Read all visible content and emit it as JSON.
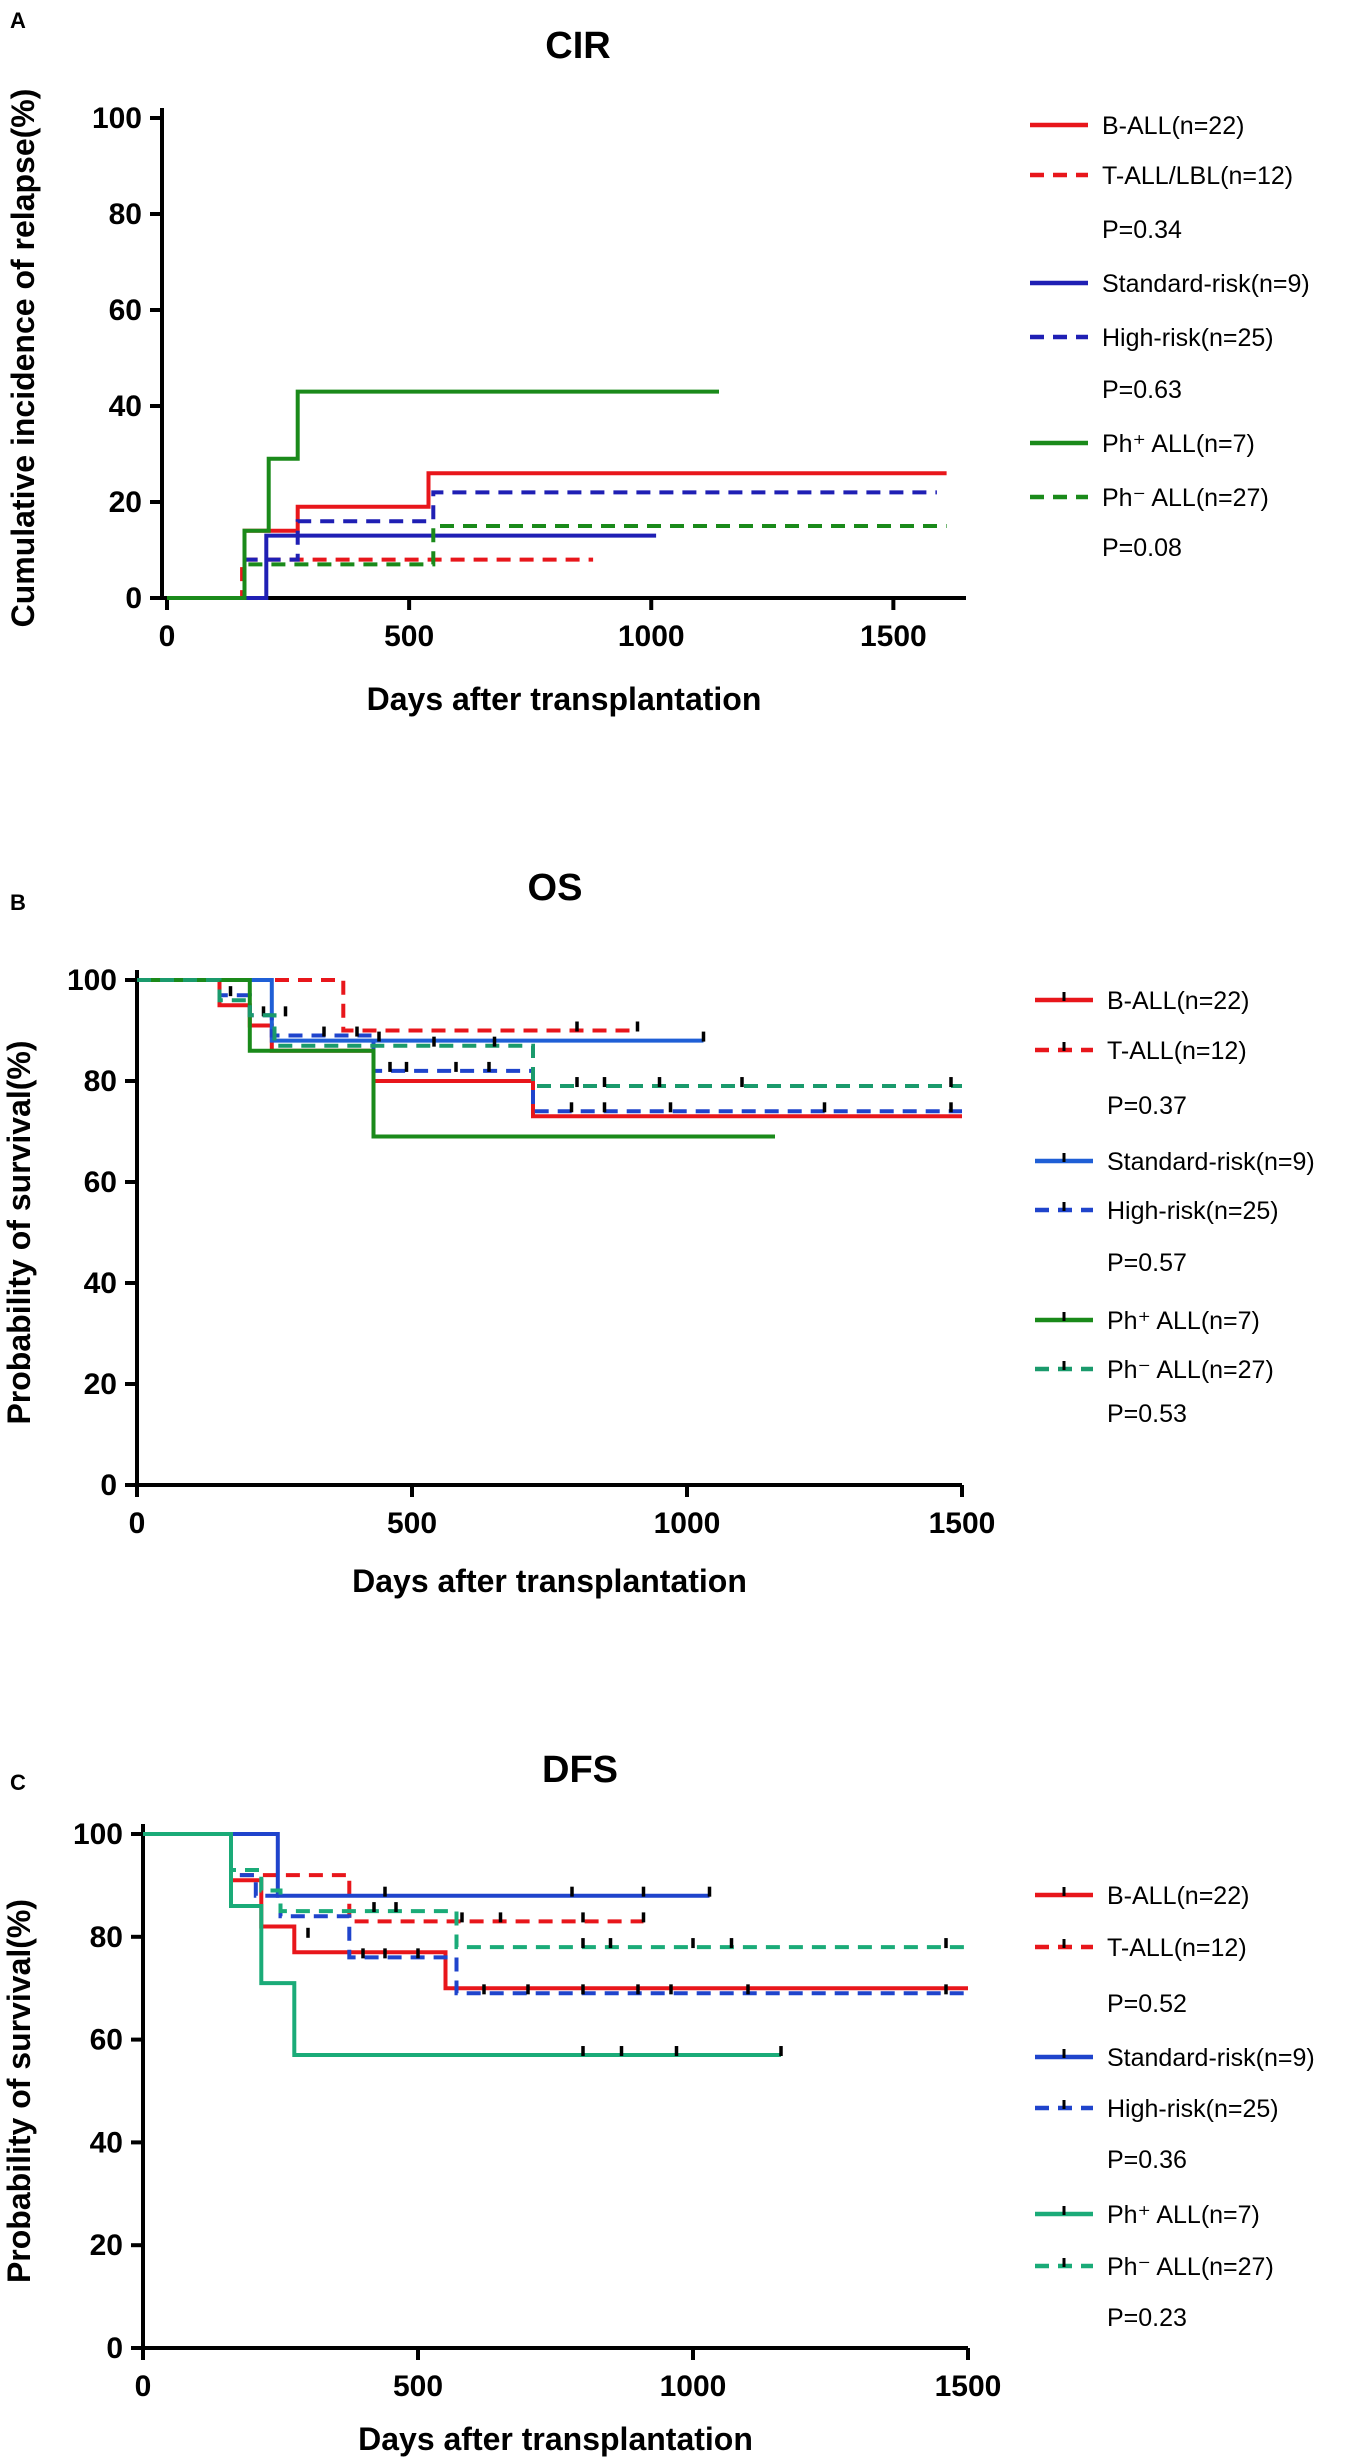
{
  "figure": {
    "panels": [
      "A",
      "B",
      "C"
    ]
  },
  "chart_data": [
    {
      "panel": "A",
      "type": "line",
      "title": "CIR",
      "xlabel": "Days after transplantation",
      "ylabel": "Cumulative incidence of relapse(%)",
      "xlim": [
        0,
        1650
      ],
      "ylim": [
        0,
        100
      ],
      "xticks": [
        0,
        500,
        1000,
        1500
      ],
      "yticks": [
        0,
        20,
        40,
        60,
        80,
        100
      ],
      "grid": false,
      "legend_position": "right",
      "series": [
        {
          "name": "B-ALL(n=22)",
          "color": "#e8161b",
          "style": "solid",
          "x": [
            0,
            160,
            160,
            270,
            270,
            540,
            540,
            1610
          ],
          "y": [
            0,
            0,
            14,
            14,
            19,
            19,
            26,
            26
          ],
          "censored": []
        },
        {
          "name": "T-ALL/LBL(n=12)",
          "color": "#e8161b",
          "style": "dashed",
          "x": [
            0,
            155,
            155,
            880
          ],
          "y": [
            0,
            0,
            8,
            8
          ],
          "censored": []
        },
        {
          "name": "Standard-risk(n=9)",
          "color": "#1f1fb4",
          "style": "solid",
          "x": [
            0,
            205,
            205,
            1010
          ],
          "y": [
            0,
            0,
            13,
            13
          ],
          "censored": []
        },
        {
          "name": "High-risk(n=25)",
          "color": "#1f1fb4",
          "style": "dashed",
          "x": [
            0,
            160,
            160,
            270,
            270,
            550,
            550,
            1590
          ],
          "y": [
            0,
            0,
            8,
            8,
            16,
            16,
            22,
            22
          ],
          "censored": []
        },
        {
          "name": "Ph⁺ ALL(n=7)",
          "color": "#1a8a1a",
          "style": "solid",
          "x": [
            0,
            160,
            160,
            210,
            210,
            270,
            270,
            1140
          ],
          "y": [
            0,
            0,
            14,
            14,
            29,
            29,
            43,
            43
          ],
          "censored": []
        },
        {
          "name": "Ph⁻ ALL(n=27)",
          "color": "#1a8a1a",
          "style": "dashed",
          "x": [
            0,
            160,
            160,
            550,
            550,
            1610
          ],
          "y": [
            0,
            0,
            7,
            7,
            15,
            15
          ],
          "censored": []
        }
      ],
      "pvalues": [
        "P=0.34",
        "P=0.63",
        "P=0.08"
      ]
    },
    {
      "panel": "B",
      "type": "line",
      "title": "OS",
      "xlabel": "Days after transplantation",
      "ylabel": "Probability of survival(%)",
      "xlim": [
        0,
        1500
      ],
      "ylim": [
        0,
        100
      ],
      "xticks": [
        0,
        500,
        1000,
        1500
      ],
      "yticks": [
        0,
        20,
        40,
        60,
        80,
        100
      ],
      "grid": false,
      "legend_position": "right",
      "series": [
        {
          "name": "B-ALL(n=22)",
          "color": "#e8161b",
          "style": "solid",
          "x": [
            0,
            150,
            150,
            205,
            205,
            245,
            245,
            430,
            430,
            720,
            720,
            1500
          ],
          "y": [
            100,
            100,
            95,
            95,
            91,
            91,
            86,
            86,
            80,
            80,
            73,
            73
          ],
          "censored": []
        },
        {
          "name": "T-ALL(n=12)",
          "color": "#e8161b",
          "style": "dashed",
          "x": [
            0,
            375,
            375,
            910
          ],
          "y": [
            100,
            100,
            90,
            90
          ],
          "censored": [
            [
              800,
              90
            ],
            [
              910,
              90
            ]
          ]
        },
        {
          "name": "Standard-risk(n=9)",
          "color": "#1f5fd6",
          "style": "solid",
          "x": [
            0,
            245,
            245,
            1030
          ],
          "y": [
            100,
            100,
            88,
            88
          ],
          "censored": [
            [
              440,
              88
            ],
            [
              1030,
              88
            ]
          ]
        },
        {
          "name": "High-risk(n=25)",
          "color": "#1f44cc",
          "style": "dashed",
          "x": [
            0,
            150,
            150,
            205,
            205,
            245,
            245,
            430,
            430,
            720,
            720,
            1500
          ],
          "y": [
            100,
            100,
            97,
            97,
            93,
            93,
            89,
            89,
            82,
            82,
            74,
            74
          ],
          "censored": [
            [
              170,
              97
            ],
            [
              230,
              93
            ],
            [
              270,
              93
            ],
            [
              340,
              89
            ],
            [
              400,
              89
            ],
            [
              460,
              82
            ],
            [
              490,
              82
            ],
            [
              580,
              82
            ],
            [
              640,
              82
            ],
            [
              790,
              74
            ],
            [
              850,
              74
            ],
            [
              970,
              74
            ],
            [
              1250,
              74
            ],
            [
              1480,
              74
            ]
          ]
        },
        {
          "name": "Ph⁺ ALL(n=7)",
          "color": "#1a8a1a",
          "style": "solid",
          "x": [
            0,
            205,
            205,
            430,
            430,
            1160
          ],
          "y": [
            100,
            100,
            86,
            86,
            69,
            69
          ],
          "censored": []
        },
        {
          "name": "Ph⁻ ALL(n=27)",
          "color": "#1a9a6c",
          "style": "dashed",
          "x": [
            0,
            150,
            150,
            205,
            205,
            250,
            250,
            720,
            720,
            1500
          ],
          "y": [
            100,
            100,
            96,
            96,
            93,
            93,
            87,
            87,
            79,
            79
          ],
          "censored": [
            [
              540,
              87
            ],
            [
              650,
              87
            ],
            [
              800,
              79
            ],
            [
              850,
              79
            ],
            [
              950,
              79
            ],
            [
              1100,
              79
            ],
            [
              1480,
              79
            ]
          ]
        }
      ],
      "pvalues": [
        "P=0.37",
        "P=0.57",
        "P=0.53"
      ]
    },
    {
      "panel": "C",
      "type": "line",
      "title": "DFS",
      "xlabel": "Days after transplantation",
      "ylabel": "Probability of survival(%)",
      "xlim": [
        0,
        1500
      ],
      "ylim": [
        0,
        100
      ],
      "xticks": [
        0,
        500,
        1000,
        1500
      ],
      "yticks": [
        0,
        20,
        40,
        60,
        80,
        100
      ],
      "grid": false,
      "legend_position": "right",
      "series": [
        {
          "name": "B-ALL(n=22)",
          "color": "#e8161b",
          "style": "solid",
          "x": [
            0,
            160,
            160,
            215,
            215,
            275,
            275,
            550,
            550,
            1500
          ],
          "y": [
            100,
            100,
            91,
            91,
            82,
            82,
            77,
            77,
            70,
            70
          ],
          "censored": []
        },
        {
          "name": "T-ALL(n=12)",
          "color": "#e8161b",
          "style": "dashed",
          "x": [
            0,
            160,
            160,
            375,
            375,
            910
          ],
          "y": [
            100,
            100,
            92,
            92,
            83,
            83
          ],
          "censored": [
            [
              580,
              83
            ],
            [
              650,
              83
            ],
            [
              800,
              83
            ],
            [
              910,
              83
            ]
          ]
        },
        {
          "name": "Standard-risk(n=9)",
          "color": "#1f44cc",
          "style": "solid",
          "x": [
            0,
            245,
            245,
            1030
          ],
          "y": [
            100,
            100,
            88,
            88
          ],
          "censored": [
            [
              440,
              88
            ],
            [
              780,
              88
            ],
            [
              910,
              88
            ],
            [
              1030,
              88
            ]
          ]
        },
        {
          "name": "High-risk(n=25)",
          "color": "#1f44cc",
          "style": "dashed",
          "x": [
            0,
            160,
            160,
            205,
            205,
            250,
            250,
            375,
            375,
            570,
            570,
            1500
          ],
          "y": [
            100,
            100,
            92,
            92,
            88,
            88,
            84,
            84,
            76,
            76,
            69,
            69
          ],
          "censored": [
            [
              300,
              80
            ],
            [
              400,
              76
            ],
            [
              440,
              76
            ],
            [
              500,
              76
            ],
            [
              620,
              69
            ],
            [
              700,
              69
            ],
            [
              800,
              69
            ],
            [
              900,
              69
            ],
            [
              960,
              69
            ],
            [
              1100,
              69
            ],
            [
              1460,
              69
            ]
          ]
        },
        {
          "name": "Ph⁺ ALL(n=7)",
          "color": "#1aab78",
          "style": "solid",
          "x": [
            0,
            160,
            160,
            215,
            215,
            275,
            275,
            1160
          ],
          "y": [
            100,
            100,
            86,
            86,
            71,
            71,
            57,
            57
          ],
          "censored": [
            [
              800,
              57
            ],
            [
              870,
              57
            ],
            [
              970,
              57
            ],
            [
              1160,
              57
            ]
          ]
        },
        {
          "name": "Ph⁻ ALL(n=27)",
          "color": "#1aab78",
          "style": "dashed",
          "x": [
            0,
            160,
            160,
            215,
            215,
            250,
            250,
            570,
            570,
            1500
          ],
          "y": [
            100,
            100,
            93,
            93,
            89,
            89,
            85,
            85,
            78,
            78
          ],
          "censored": [
            [
              420,
              85
            ],
            [
              460,
              85
            ],
            [
              800,
              78
            ],
            [
              850,
              78
            ],
            [
              1000,
              78
            ],
            [
              1070,
              78
            ],
            [
              1460,
              78
            ]
          ]
        }
      ],
      "pvalues": [
        "P=0.52",
        "P=0.36",
        "P=0.23"
      ]
    }
  ]
}
